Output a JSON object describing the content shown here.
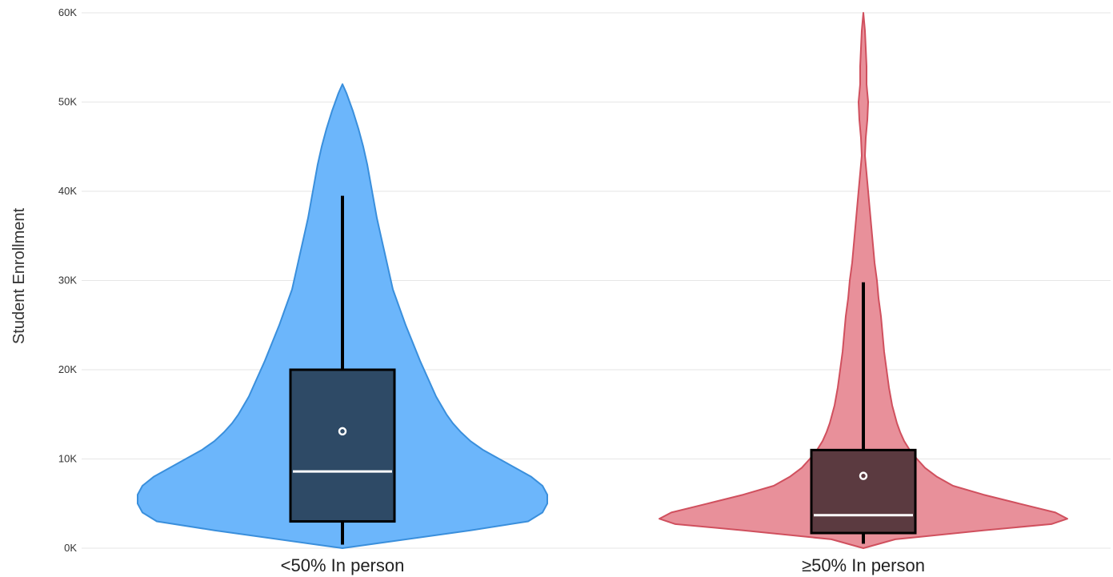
{
  "chart_data": {
    "type": "violin",
    "ylabel": "Student Enrollment",
    "ylim": [
      0,
      60000
    ],
    "yticks": [
      0,
      10000,
      20000,
      30000,
      40000,
      50000,
      60000
    ],
    "ytick_labels": [
      "0K",
      "10K",
      "20K",
      "30K",
      "40K",
      "50K",
      "60K"
    ],
    "grid": true,
    "categories": [
      "<50% In person",
      "≥50% In person"
    ],
    "series": [
      {
        "category": "<50% In person",
        "fill": "#6cb6fb",
        "stroke": "#3a8fdc",
        "box_fill": "#2e4a66",
        "box": {
          "q1": 3000,
          "median": 8600,
          "q3": 20000,
          "whisker_low": 400,
          "whisker_high": 39500,
          "mean": 13100
        },
        "density": {
          "y": [
            0,
            1000,
            2000,
            3000,
            4000,
            5000,
            6000,
            7000,
            8000,
            9000,
            10000,
            11000,
            12000,
            13000,
            14000,
            15000,
            17000,
            19000,
            21000,
            23000,
            25000,
            27000,
            29000,
            31000,
            33000,
            35000,
            37000,
            39000,
            41000,
            43000,
            45000,
            47000,
            49000,
            51000,
            52000
          ],
          "half_width": [
            0,
            80,
            160,
            232,
            250,
            256,
            256,
            250,
            236,
            216,
            196,
            176,
            160,
            148,
            138,
            130,
            117,
            107,
            97,
            88,
            79,
            71,
            63,
            58,
            53,
            48,
            43,
            39,
            35,
            31,
            26,
            20,
            13,
            5,
            0
          ]
        }
      },
      {
        "category": "≥50% In person",
        "fill": "#e8909a",
        "stroke": "#d0505e",
        "box_fill": "#5b3a40",
        "box": {
          "q1": 1700,
          "median": 3700,
          "q3": 11000,
          "whisker_low": 500,
          "whisker_high": 29800,
          "mean": 8100
        },
        "density": {
          "y": [
            0,
            1000,
            2000,
            2700,
            3300,
            4000,
            5000,
            6000,
            7000,
            8000,
            9000,
            10000,
            11000,
            12000,
            13000,
            14000,
            16000,
            18000,
            20000,
            22000,
            24000,
            26000,
            28000,
            30000,
            32000,
            34000,
            36000,
            38000,
            40000,
            42000,
            44000,
            46000,
            48000,
            50000,
            52000,
            54000,
            56000,
            58000,
            60000
          ],
          "half_width": [
            0,
            40,
            150,
            235,
            255,
            240,
            195,
            150,
            112,
            92,
            77,
            67,
            58,
            51,
            46,
            42,
            36,
            32,
            29,
            26,
            24,
            22,
            19,
            17,
            14,
            12,
            10,
            8,
            6,
            4,
            2,
            3,
            5,
            6,
            4,
            4,
            3,
            2,
            0
          ]
        }
      }
    ]
  }
}
